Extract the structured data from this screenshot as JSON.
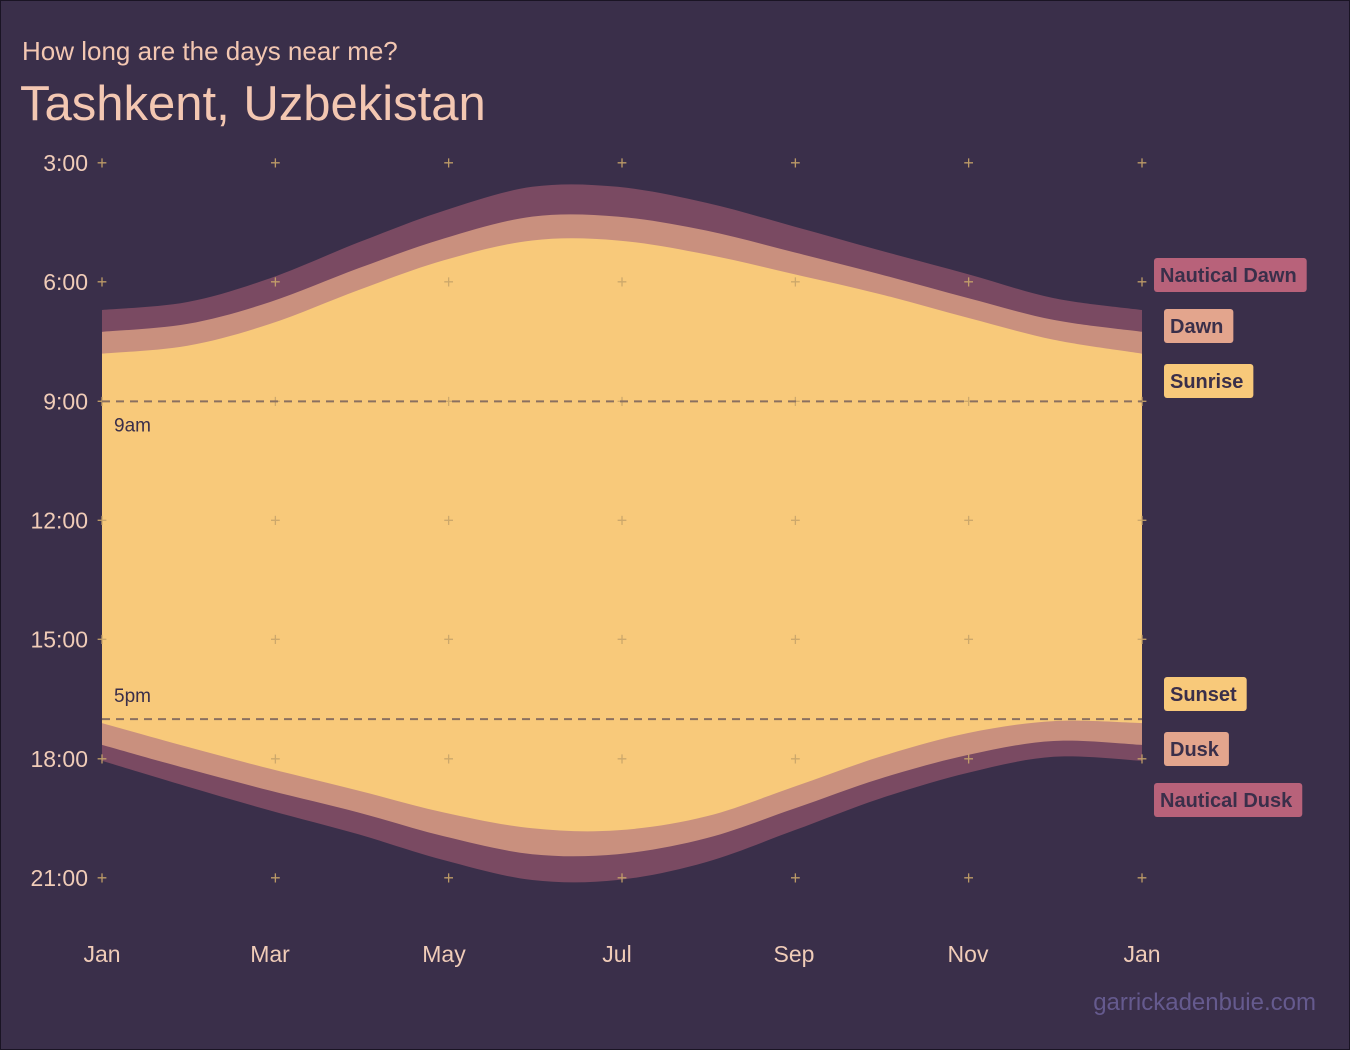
{
  "subtitle": "How long are the days near me?",
  "title": "Tashkent, Uzbekistan",
  "caption": "garrickadenbuie.com",
  "colors": {
    "background": "#3a2f4a",
    "text": "#f3c7b2",
    "tick_text": "#f0ccb8",
    "cross": "#c9a56a",
    "caption": "#655a8e",
    "nautical": "#7a4a62",
    "civil": "#c9907e",
    "day": "#f8c97a",
    "reference_line": "#8a7060"
  },
  "chart_data": {
    "type": "area",
    "x_tick_labels": [
      "Jan",
      "Mar",
      "May",
      "Jul",
      "Sep",
      "Nov",
      "Jan"
    ],
    "y_tick_labels": [
      "3:00",
      "6:00",
      "9:00",
      "12:00",
      "15:00",
      "18:00",
      "21:00"
    ],
    "ylim_hours": [
      3,
      21
    ],
    "y_reversed": true,
    "grid": false,
    "grid_markers": "crosses",
    "x_days": [
      0,
      30,
      59,
      90,
      120,
      151,
      181,
      212,
      243,
      273,
      304,
      334,
      365
    ],
    "series": [
      {
        "name": "Nautical Dawn",
        "color": "#b8627a",
        "values": [
          6.7,
          6.5,
          5.9,
          5.0,
          4.2,
          3.6,
          3.6,
          4.0,
          4.6,
          5.2,
          5.8,
          6.4,
          6.7
        ]
      },
      {
        "name": "Dawn",
        "color": "#e3a58d",
        "values": [
          7.25,
          7.05,
          6.5,
          5.65,
          4.9,
          4.35,
          4.35,
          4.7,
          5.25,
          5.8,
          6.4,
          6.95,
          7.25
        ]
      },
      {
        "name": "Sunrise",
        "color": "#f8c97a",
        "values": [
          7.8,
          7.6,
          7.05,
          6.2,
          5.45,
          4.95,
          4.95,
          5.3,
          5.8,
          6.3,
          6.9,
          7.45,
          7.8
        ]
      },
      {
        "name": "Sunset",
        "color": "#f8c97a",
        "values": [
          17.1,
          17.7,
          18.25,
          18.8,
          19.35,
          19.75,
          19.8,
          19.45,
          18.7,
          17.95,
          17.35,
          17.05,
          17.1
        ]
      },
      {
        "name": "Dusk",
        "color": "#e3a58d",
        "values": [
          17.65,
          18.25,
          18.8,
          19.35,
          19.95,
          20.4,
          20.4,
          20.0,
          19.25,
          18.5,
          17.9,
          17.55,
          17.65
        ]
      },
      {
        "name": "Nautical Dusk",
        "color": "#b8627a",
        "values": [
          18.05,
          18.7,
          19.3,
          19.9,
          20.55,
          21.05,
          21.05,
          20.6,
          19.8,
          19.0,
          18.35,
          17.95,
          18.05
        ]
      }
    ],
    "reference_lines": [
      {
        "hour": 9,
        "label": "9am"
      },
      {
        "hour": 17,
        "label": "5pm"
      }
    ]
  }
}
